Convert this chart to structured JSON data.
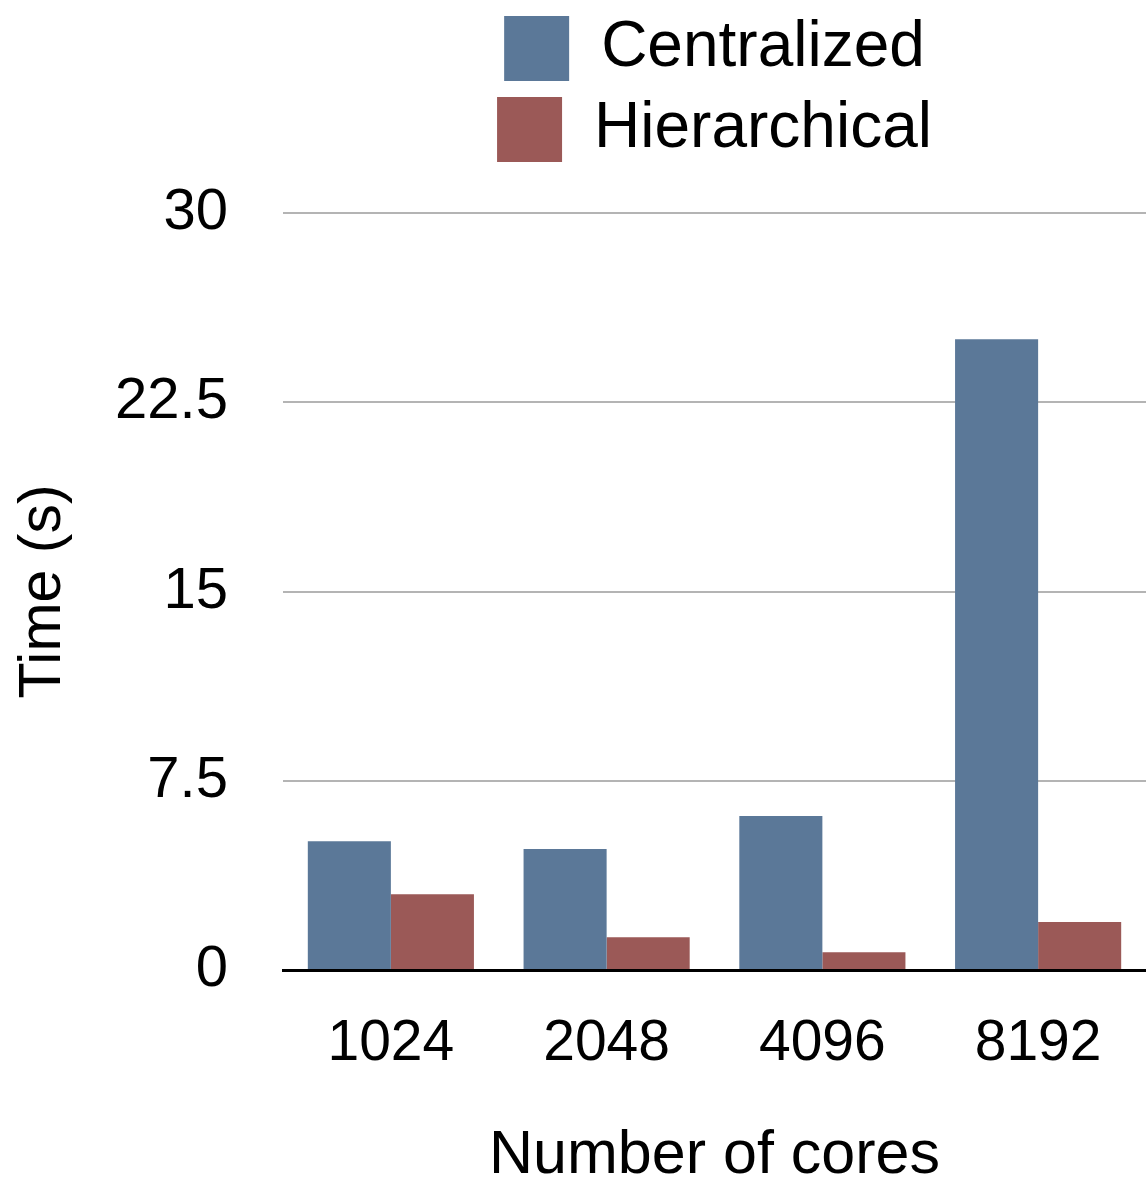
{
  "chart_data": {
    "type": "bar",
    "xlabel": "Number of cores",
    "ylabel": "Time (s)",
    "categories": [
      "1024",
      "2048",
      "4096",
      "8192"
    ],
    "series": [
      {
        "name": "Centralized",
        "color": "#5b7898",
        "values": [
          5.1,
          4.8,
          6.1,
          25.0
        ]
      },
      {
        "name": "Hierarchical",
        "color": "#9b5957",
        "values": [
          3.0,
          1.3,
          0.7,
          1.9
        ]
      }
    ],
    "ylim": [
      0,
      30
    ],
    "yticks": [
      0,
      7.5,
      15,
      22.5,
      30
    ],
    "grid": "y",
    "legend": "top"
  }
}
